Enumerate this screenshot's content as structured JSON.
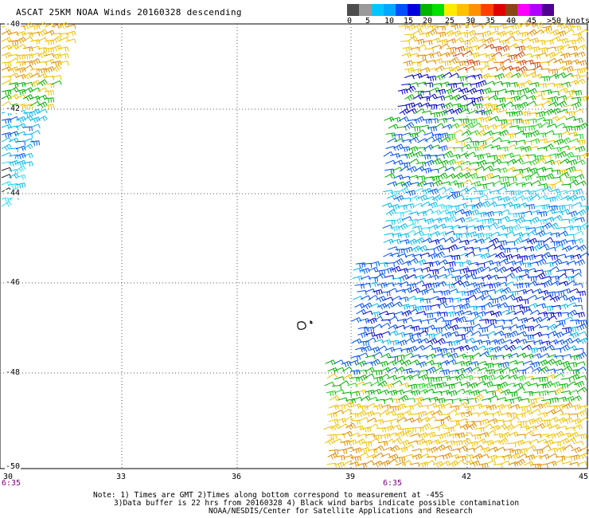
{
  "title": "ASCAT 25KM NOAA Winds 20160328 descending",
  "colorbar": {
    "colors": [
      "#4d4d4d",
      "#9a9a9a",
      "#00c8ff",
      "#00a8ff",
      "#0050ff",
      "#0000e0",
      "#00b400",
      "#00e000",
      "#ffeb00",
      "#ffc000",
      "#ff9000",
      "#ff4000",
      "#e00000",
      "#8b4513",
      "#ff00ff",
      "#b000ff",
      "#500090"
    ],
    "labels": [
      "0",
      "5",
      "10",
      "15",
      "20",
      "25",
      "30",
      "35",
      "40",
      "45",
      ">50 knots"
    ]
  },
  "axes": {
    "lat_labels": [
      "-40",
      "-42",
      "-44",
      "-46",
      "-48",
      "-50"
    ],
    "lon_labels": [
      "30",
      "33",
      "36",
      "39",
      "42",
      "45"
    ],
    "time_labels": [
      "6:35",
      "6:35"
    ]
  },
  "notes": {
    "line1": "Note: 1) Times are GMT 2)Times along bottom correspond to measurement at -45S",
    "line2": "3)Data buffer is 22 hrs from 20160328 4) Black wind barbs indicate possible contamination",
    "line3": "NOAA/NESDIS/Center for Satellite Applications and Research"
  }
}
